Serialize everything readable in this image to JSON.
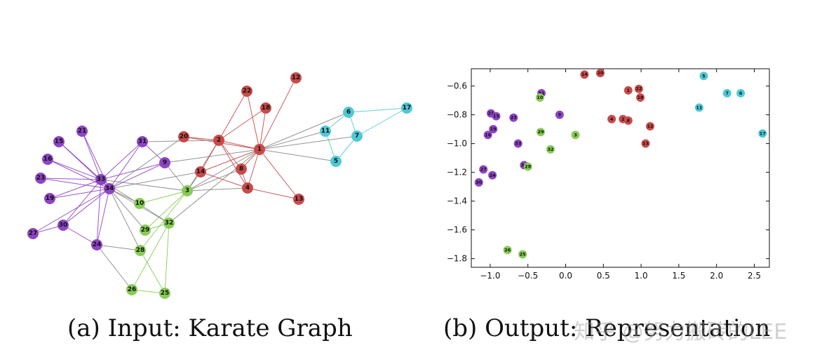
{
  "colors": {
    "purple": "#8e44c4",
    "red": "#c94a4a",
    "cyan": "#4fc9d4",
    "green": "#88cc55",
    "edge_gray": "#888888"
  },
  "captions": {
    "a": "(a) Input: Karate Graph",
    "b": "(b) Output: Representation"
  },
  "watermark": "知乎 @努力搬砖的LEE",
  "chart_data": [
    {
      "type": "network",
      "title": "",
      "communities": {
        "purple": [
          9,
          15,
          16,
          19,
          21,
          23,
          24,
          27,
          30,
          31,
          33,
          34
        ],
        "red": [
          1,
          2,
          4,
          8,
          12,
          13,
          14,
          18,
          20,
          22
        ],
        "cyan": [
          5,
          6,
          7,
          11,
          17
        ],
        "green": [
          3,
          10,
          25,
          26,
          28,
          29,
          32
        ]
      },
      "nodes": [
        "1",
        "2",
        "3",
        "4",
        "5",
        "6",
        "7",
        "8",
        "9",
        "10",
        "11",
        "12",
        "13",
        "14",
        "15",
        "16",
        "17",
        "18",
        "19",
        "20",
        "21",
        "22",
        "23",
        "24",
        "25",
        "26",
        "27",
        "28",
        "29",
        "30",
        "31",
        "32",
        "33",
        "34"
      ],
      "edges": [
        [
          1,
          2
        ],
        [
          1,
          3
        ],
        [
          1,
          4
        ],
        [
          1,
          5
        ],
        [
          1,
          6
        ],
        [
          1,
          7
        ],
        [
          1,
          8
        ],
        [
          1,
          9
        ],
        [
          1,
          11
        ],
        [
          1,
          12
        ],
        [
          1,
          13
        ],
        [
          1,
          14
        ],
        [
          1,
          18
        ],
        [
          1,
          20
        ],
        [
          1,
          22
        ],
        [
          1,
          32
        ],
        [
          2,
          3
        ],
        [
          2,
          4
        ],
        [
          2,
          8
        ],
        [
          2,
          14
        ],
        [
          2,
          18
        ],
        [
          2,
          20
        ],
        [
          2,
          22
        ],
        [
          2,
          31
        ],
        [
          3,
          4
        ],
        [
          3,
          8
        ],
        [
          3,
          9
        ],
        [
          3,
          10
        ],
        [
          3,
          14
        ],
        [
          3,
          28
        ],
        [
          3,
          29
        ],
        [
          3,
          33
        ],
        [
          4,
          8
        ],
        [
          4,
          13
        ],
        [
          4,
          14
        ],
        [
          5,
          7
        ],
        [
          5,
          11
        ],
        [
          6,
          7
        ],
        [
          6,
          11
        ],
        [
          6,
          17
        ],
        [
          7,
          17
        ],
        [
          9,
          31
        ],
        [
          9,
          33
        ],
        [
          9,
          34
        ],
        [
          10,
          34
        ],
        [
          14,
          34
        ],
        [
          15,
          33
        ],
        [
          15,
          34
        ],
        [
          16,
          33
        ],
        [
          16,
          34
        ],
        [
          19,
          33
        ],
        [
          19,
          34
        ],
        [
          20,
          34
        ],
        [
          21,
          33
        ],
        [
          21,
          34
        ],
        [
          23,
          33
        ],
        [
          23,
          34
        ],
        [
          24,
          26
        ],
        [
          24,
          28
        ],
        [
          24,
          30
        ],
        [
          24,
          33
        ],
        [
          24,
          34
        ],
        [
          25,
          26
        ],
        [
          25,
          28
        ],
        [
          25,
          32
        ],
        [
          26,
          32
        ],
        [
          27,
          30
        ],
        [
          27,
          34
        ],
        [
          28,
          34
        ],
        [
          29,
          32
        ],
        [
          29,
          34
        ],
        [
          30,
          33
        ],
        [
          30,
          34
        ],
        [
          31,
          33
        ],
        [
          31,
          34
        ],
        [
          32,
          33
        ],
        [
          32,
          34
        ],
        [
          33,
          34
        ]
      ]
    },
    {
      "type": "scatter",
      "title": "",
      "xlabel": "",
      "ylabel": "",
      "xlim": [
        -1.25,
        2.7
      ],
      "ylim": [
        -1.86,
        -0.48
      ],
      "xticks": [
        "-1.0",
        "-0.5",
        "0.0",
        "0.5",
        "1.0",
        "1.5",
        "2.0",
        "2.5"
      ],
      "xtick_values": [
        -1.0,
        -0.5,
        0.0,
        0.5,
        1.0,
        1.5,
        2.0,
        2.5
      ],
      "yticks": [
        "-0.6",
        "-0.8",
        "-1.0",
        "-1.2",
        "-1.4",
        "-1.6",
        "-1.8"
      ],
      "ytick_values": [
        -0.6,
        -0.8,
        -1.0,
        -1.2,
        -1.4,
        -1.6,
        -1.8
      ],
      "grid": false,
      "points": [
        {
          "label": "14",
          "x": 0.25,
          "y": -0.52,
          "group": "red"
        },
        {
          "label": "20",
          "x": 0.46,
          "y": -0.51,
          "group": "red"
        },
        {
          "label": "1",
          "x": 0.83,
          "y": -0.63,
          "group": "red"
        },
        {
          "label": "22",
          "x": 0.97,
          "y": -0.62,
          "group": "red"
        },
        {
          "label": "18",
          "x": 0.99,
          "y": -0.68,
          "group": "red"
        },
        {
          "label": "4",
          "x": 0.61,
          "y": -0.83,
          "group": "red"
        },
        {
          "label": "2",
          "x": 0.76,
          "y": -0.83,
          "group": "red"
        },
        {
          "label": "8",
          "x": 0.83,
          "y": -0.84,
          "group": "red"
        },
        {
          "label": "12",
          "x": 1.12,
          "y": -0.88,
          "group": "red"
        },
        {
          "label": "13",
          "x": 1.06,
          "y": -1.0,
          "group": "red"
        },
        {
          "label": "5",
          "x": 1.83,
          "y": -0.53,
          "group": "cyan"
        },
        {
          "label": "7",
          "x": 2.14,
          "y": -0.65,
          "group": "cyan"
        },
        {
          "label": "6",
          "x": 2.32,
          "y": -0.65,
          "group": "cyan"
        },
        {
          "label": "11",
          "x": 1.77,
          "y": -0.75,
          "group": "cyan"
        },
        {
          "label": "17",
          "x": 2.61,
          "y": -0.93,
          "group": "cyan"
        },
        {
          "label": "31",
          "x": -0.32,
          "y": -0.65,
          "group": "purple"
        },
        {
          "label": "21",
          "x": -0.99,
          "y": -0.79,
          "group": "purple"
        },
        {
          "label": "15",
          "x": -0.92,
          "y": -0.81,
          "group": "purple"
        },
        {
          "label": "23",
          "x": -0.69,
          "y": -0.82,
          "group": "purple"
        },
        {
          "label": "9",
          "x": -0.08,
          "y": -0.8,
          "group": "purple"
        },
        {
          "label": "19",
          "x": -0.96,
          "y": -0.9,
          "group": "purple"
        },
        {
          "label": "16",
          "x": -1.03,
          "y": -0.94,
          "group": "purple"
        },
        {
          "label": "33",
          "x": -0.63,
          "y": -1.0,
          "group": "purple"
        },
        {
          "label": "34",
          "x": -0.55,
          "y": -1.15,
          "group": "purple"
        },
        {
          "label": "27",
          "x": -1.09,
          "y": -1.18,
          "group": "purple"
        },
        {
          "label": "24",
          "x": -0.97,
          "y": -1.22,
          "group": "purple"
        },
        {
          "label": "30",
          "x": -1.15,
          "y": -1.27,
          "group": "purple"
        },
        {
          "label": "10",
          "x": -0.34,
          "y": -0.68,
          "group": "green"
        },
        {
          "label": "29",
          "x": -0.33,
          "y": -0.92,
          "group": "green"
        },
        {
          "label": "3",
          "x": 0.13,
          "y": -0.94,
          "group": "green"
        },
        {
          "label": "32",
          "x": -0.2,
          "y": -1.04,
          "group": "green"
        },
        {
          "label": "28",
          "x": -0.5,
          "y": -1.16,
          "group": "green"
        },
        {
          "label": "26",
          "x": -0.77,
          "y": -1.74,
          "group": "green"
        },
        {
          "label": "25",
          "x": -0.57,
          "y": -1.77,
          "group": "green"
        }
      ]
    }
  ]
}
